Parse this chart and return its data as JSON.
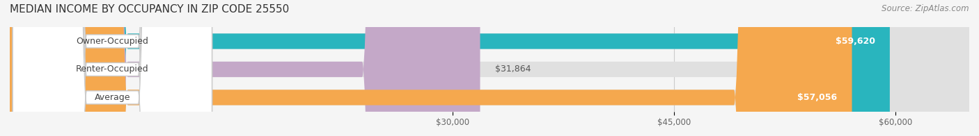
{
  "title": "MEDIAN INCOME BY OCCUPANCY IN ZIP CODE 25550",
  "source": "Source: ZipAtlas.com",
  "categories": [
    "Owner-Occupied",
    "Renter-Occupied",
    "Average"
  ],
  "values": [
    59620,
    31864,
    57056
  ],
  "bar_colors": [
    "#29B5BE",
    "#C4A8C8",
    "#F5A84E"
  ],
  "label_colors": [
    "#29B5BE",
    "#C4A8C8",
    "#F5A84E"
  ],
  "value_labels": [
    "$59,620",
    "$31,864",
    "$57,056"
  ],
  "xlim": [
    0,
    65000
  ],
  "xticks": [
    30000,
    45000,
    60000
  ],
  "xtick_labels": [
    "$30,000",
    "$45,000",
    "$60,000"
  ],
  "bar_height": 0.55,
  "background_color": "#f5f5f5",
  "bar_bg_color": "#e8e8e8",
  "title_fontsize": 11,
  "source_fontsize": 8.5,
  "label_fontsize": 9,
  "value_fontsize": 9
}
